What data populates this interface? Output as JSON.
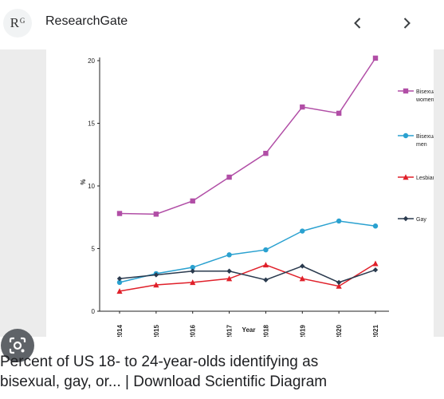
{
  "header": {
    "logo_text": "R",
    "logo_sup": "G",
    "site_name": "ResearchGate",
    "prev_icon": "chevron-left-icon",
    "next_icon": "chevron-right-icon"
  },
  "lens": {
    "icon": "lens-search-icon"
  },
  "caption": {
    "line1": "Percent of US 18- to 24-year-olds identifying as",
    "line2": "bisexual, gay, or... | Download Scientific Diagram"
  },
  "chart_data": {
    "type": "line",
    "x": [
      "2014",
      "2015",
      "2016",
      "2017",
      "2018",
      "2019",
      "2020",
      "2021"
    ],
    "xlabel": "Year",
    "ylabel": "%",
    "ylim": [
      0,
      20
    ],
    "yticks": [
      "0",
      "5",
      "10",
      "15",
      "20"
    ],
    "grid": false,
    "legend_position": "right",
    "series": [
      {
        "name": "Bisexual women",
        "color": "#b14ea6",
        "marker": "square",
        "values": [
          7.8,
          7.75,
          8.8,
          10.7,
          12.6,
          16.3,
          15.8,
          20.2
        ]
      },
      {
        "name": "Bisexual men",
        "color": "#2aa1d0",
        "marker": "circle",
        "values": [
          2.3,
          3.0,
          3.5,
          4.5,
          4.9,
          6.4,
          7.2,
          6.8
        ]
      },
      {
        "name": "Lesbian",
        "color": "#e0202a",
        "marker": "triangle",
        "values": [
          1.6,
          2.1,
          2.3,
          2.6,
          3.7,
          2.6,
          2.0,
          3.8
        ]
      },
      {
        "name": "Gay",
        "color": "#2a3a4e",
        "marker": "diamond",
        "values": [
          2.6,
          2.9,
          3.2,
          3.2,
          2.5,
          3.6,
          2.3,
          3.3
        ]
      }
    ]
  }
}
